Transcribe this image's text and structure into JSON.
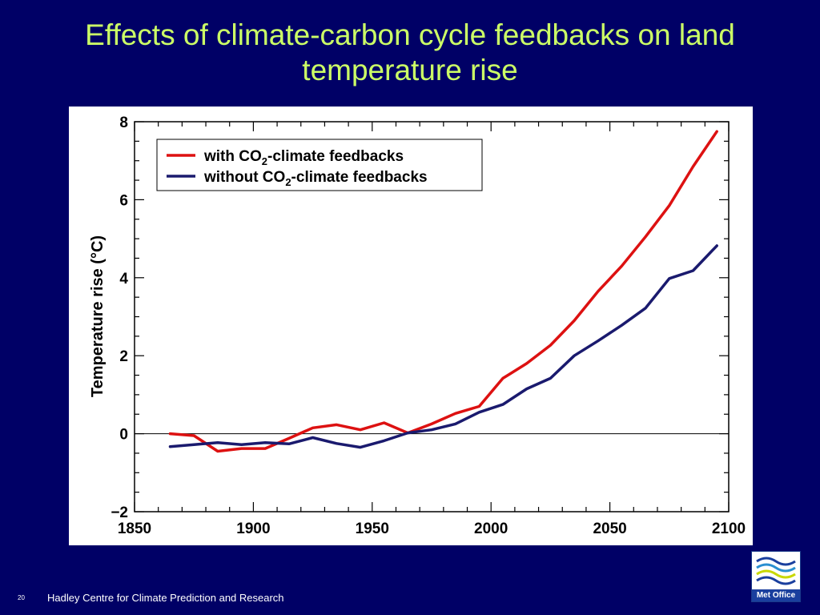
{
  "slide": {
    "title_line1": "Effects of climate-carbon cycle feedbacks on land",
    "title_line2": "temperature rise",
    "footer": "Hadley Centre for Climate Prediction and Research",
    "slide_number": "20",
    "logo_text": "Met Office"
  },
  "colors": {
    "background": "#000066",
    "title": "#ccff66",
    "with_feedbacks": "#dd1111",
    "without_feedbacks": "#1a1a6e"
  },
  "chart_data": {
    "type": "line",
    "title": "",
    "xlabel": "",
    "ylabel": "Temperature rise (°C)",
    "xlim": [
      1850,
      2100
    ],
    "ylim": [
      -2,
      8
    ],
    "xticks": [
      1850,
      1900,
      1950,
      2000,
      2050,
      2100
    ],
    "xtick_labels": [
      "1850",
      "1900",
      "1950",
      "2000",
      "2050",
      "2100"
    ],
    "yticks": [
      -2,
      0,
      2,
      4,
      6,
      8
    ],
    "ytick_labels": [
      "−2",
      "0",
      "2",
      "4",
      "6",
      "8"
    ],
    "zero_line": 0,
    "grid": false,
    "legend_position": "top-left",
    "series": [
      {
        "name_prefix": "with CO",
        "name_sub": "2",
        "name_suffix": "-climate feedbacks",
        "color": "#dd1111",
        "x": [
          1865,
          1875,
          1885,
          1895,
          1905,
          1915,
          1925,
          1935,
          1945,
          1955,
          1965,
          1975,
          1985,
          1995,
          2005,
          2015,
          2025,
          2035,
          2045,
          2055,
          2065,
          2075,
          2085,
          2095
        ],
        "y": [
          0.0,
          -0.05,
          -0.45,
          -0.38,
          -0.38,
          -0.12,
          0.15,
          0.23,
          0.1,
          0.28,
          0.02,
          0.25,
          0.52,
          0.7,
          1.42,
          1.8,
          2.27,
          2.9,
          3.65,
          4.3,
          5.05,
          5.85,
          6.85,
          7.75
        ]
      },
      {
        "name_prefix": "without CO",
        "name_sub": "2",
        "name_suffix": "-climate feedbacks",
        "color": "#1a1a6e",
        "x": [
          1865,
          1875,
          1885,
          1895,
          1905,
          1915,
          1925,
          1935,
          1945,
          1955,
          1965,
          1975,
          1985,
          1995,
          2005,
          2015,
          2025,
          2035,
          2045,
          2055,
          2065,
          2075,
          2085,
          2095
        ],
        "y": [
          -0.33,
          -0.28,
          -0.23,
          -0.28,
          -0.23,
          -0.26,
          -0.1,
          -0.25,
          -0.35,
          -0.18,
          0.02,
          0.1,
          0.25,
          0.55,
          0.75,
          1.15,
          1.42,
          2.0,
          2.38,
          2.78,
          3.22,
          3.98,
          4.18,
          4.82
        ]
      }
    ]
  }
}
